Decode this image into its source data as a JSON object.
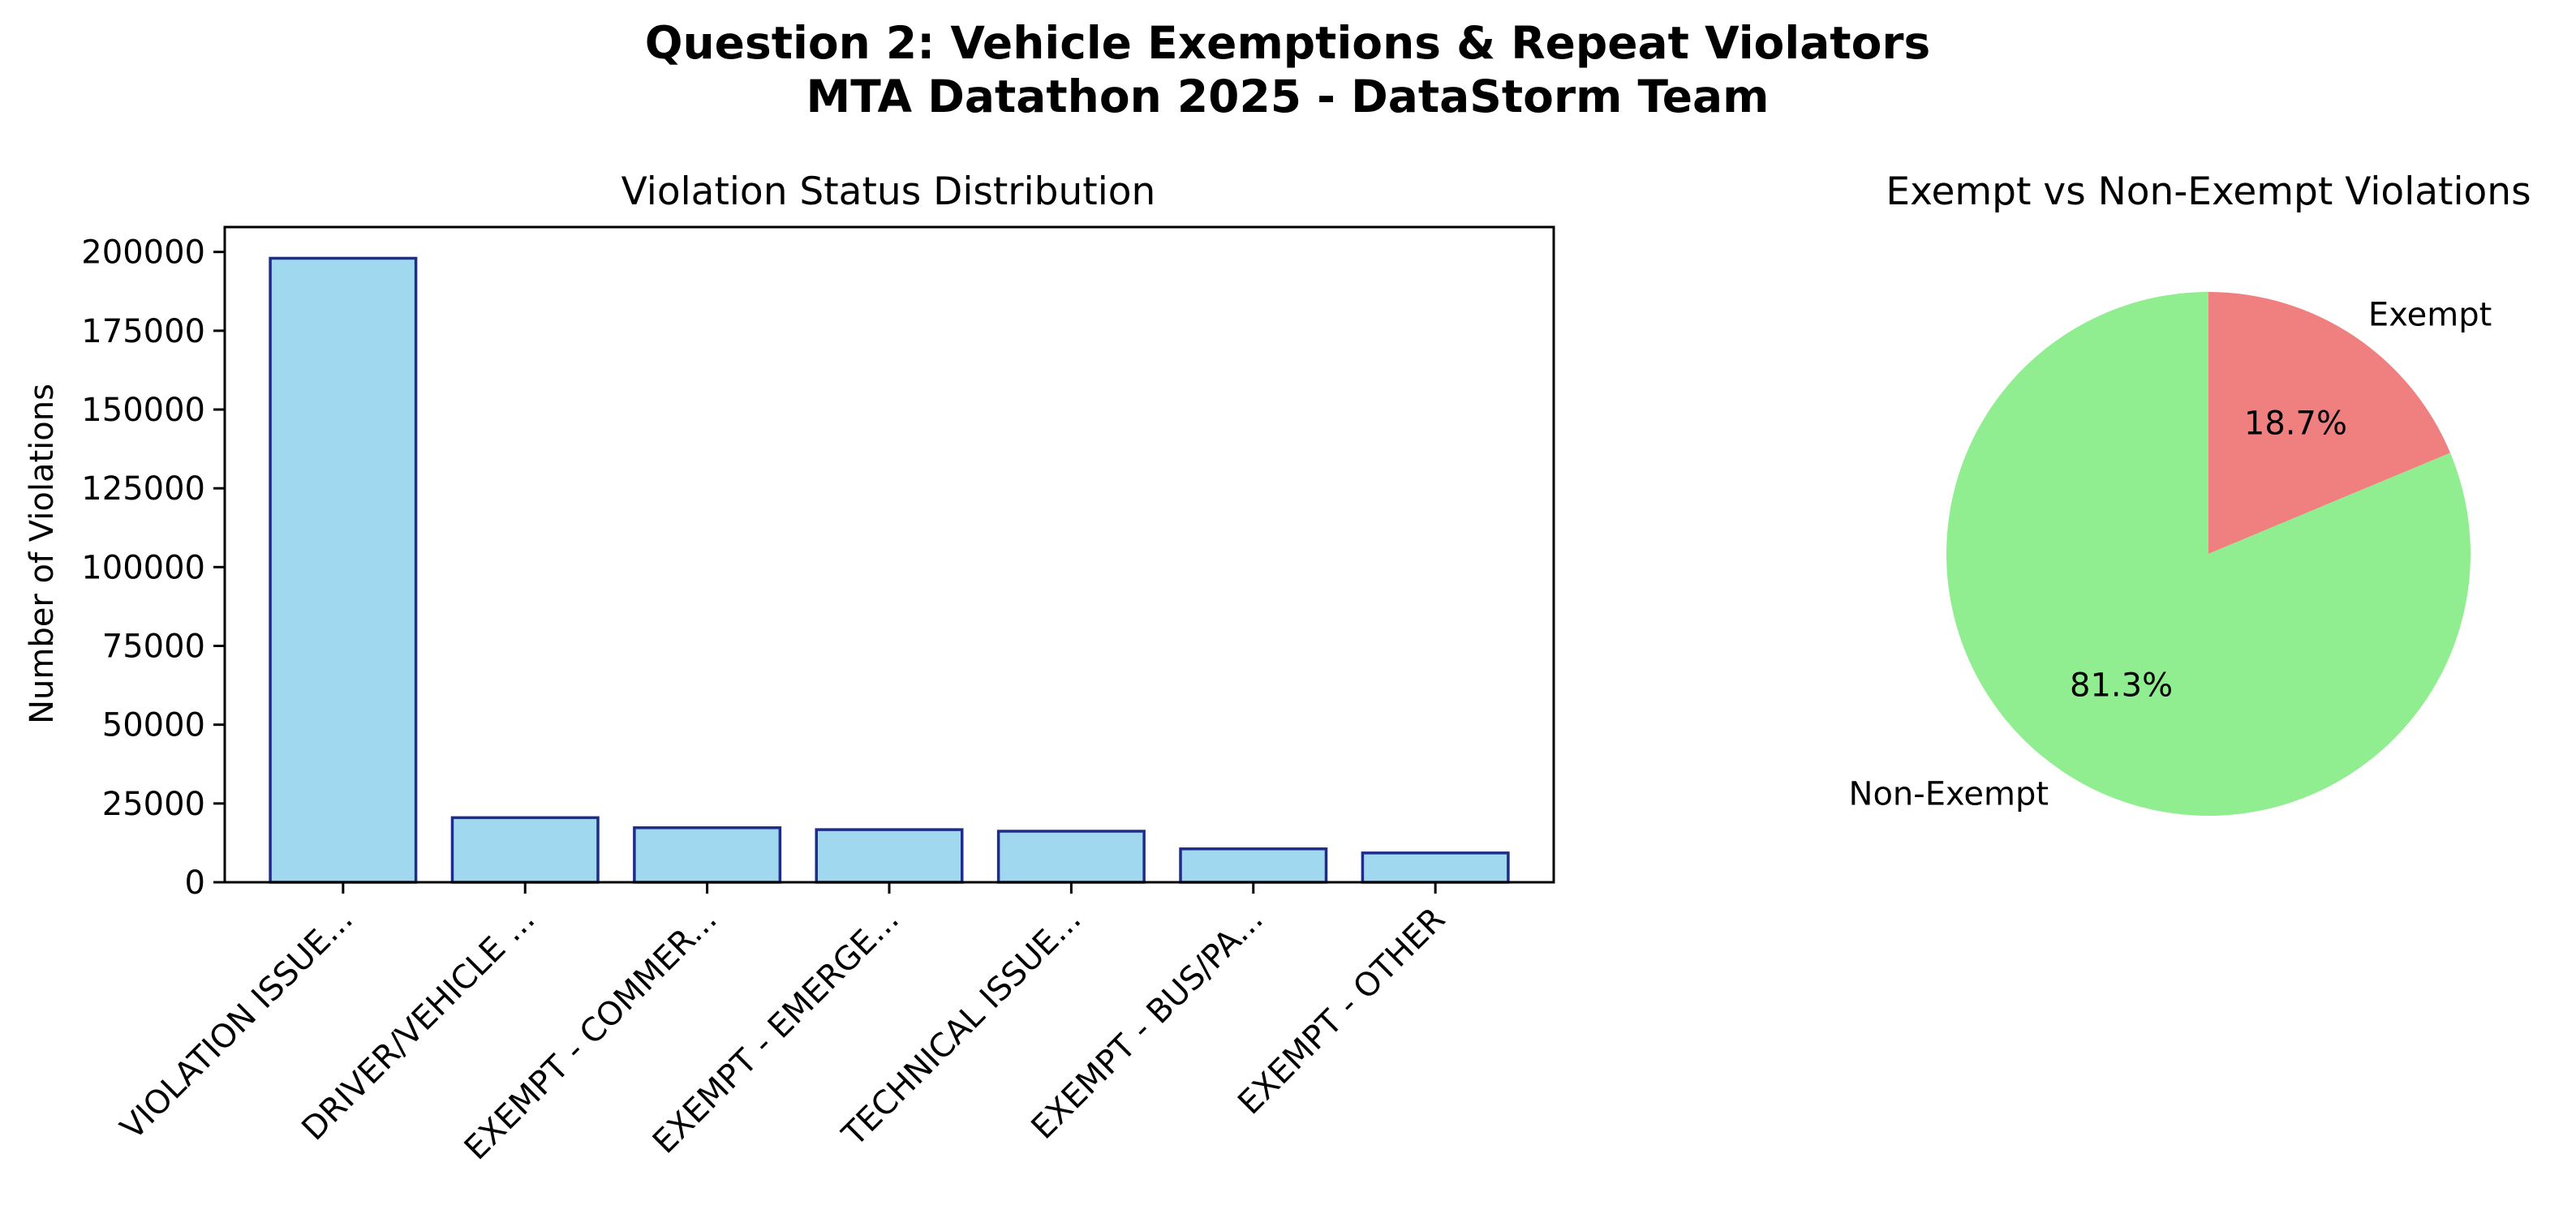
{
  "figure": {
    "title_line1": "Question 2: Vehicle Exemptions & Repeat Violators",
    "title_line2": "MTA Datathon 2025 - DataStorm Team"
  },
  "chart_data": [
    {
      "type": "bar",
      "title": "Violation Status Distribution",
      "xlabel": "",
      "ylabel": "Number of Violations",
      "categories": [
        "VIOLATION ISSUE...",
        "DRIVER/VEHICLE ...",
        "EXEMPT - COMMER...",
        "EXEMPT - EMERGE...",
        "TECHNICAL ISSUE...",
        "EXEMPT - BUS/PA...",
        "EXEMPT - OTHER"
      ],
      "values": [
        198000,
        20500,
        17300,
        16700,
        16200,
        10600,
        9300
      ],
      "ylim": [
        0,
        207900
      ],
      "yticks": [
        0,
        25000,
        50000,
        75000,
        100000,
        125000,
        150000,
        175000,
        200000
      ],
      "bar_color": "#87ceeb",
      "edge_color": "#1f2d8a",
      "grid": false,
      "legend": "none"
    },
    {
      "type": "pie",
      "title": "Exempt vs Non-Exempt Violations",
      "labels": [
        "Exempt",
        "Non-Exempt"
      ],
      "values": [
        18.7,
        81.3
      ],
      "pct_labels": [
        "18.7%",
        "81.3%"
      ],
      "colors": [
        "#f08080",
        "#90ee90"
      ],
      "start": "top, clockwise"
    }
  ]
}
